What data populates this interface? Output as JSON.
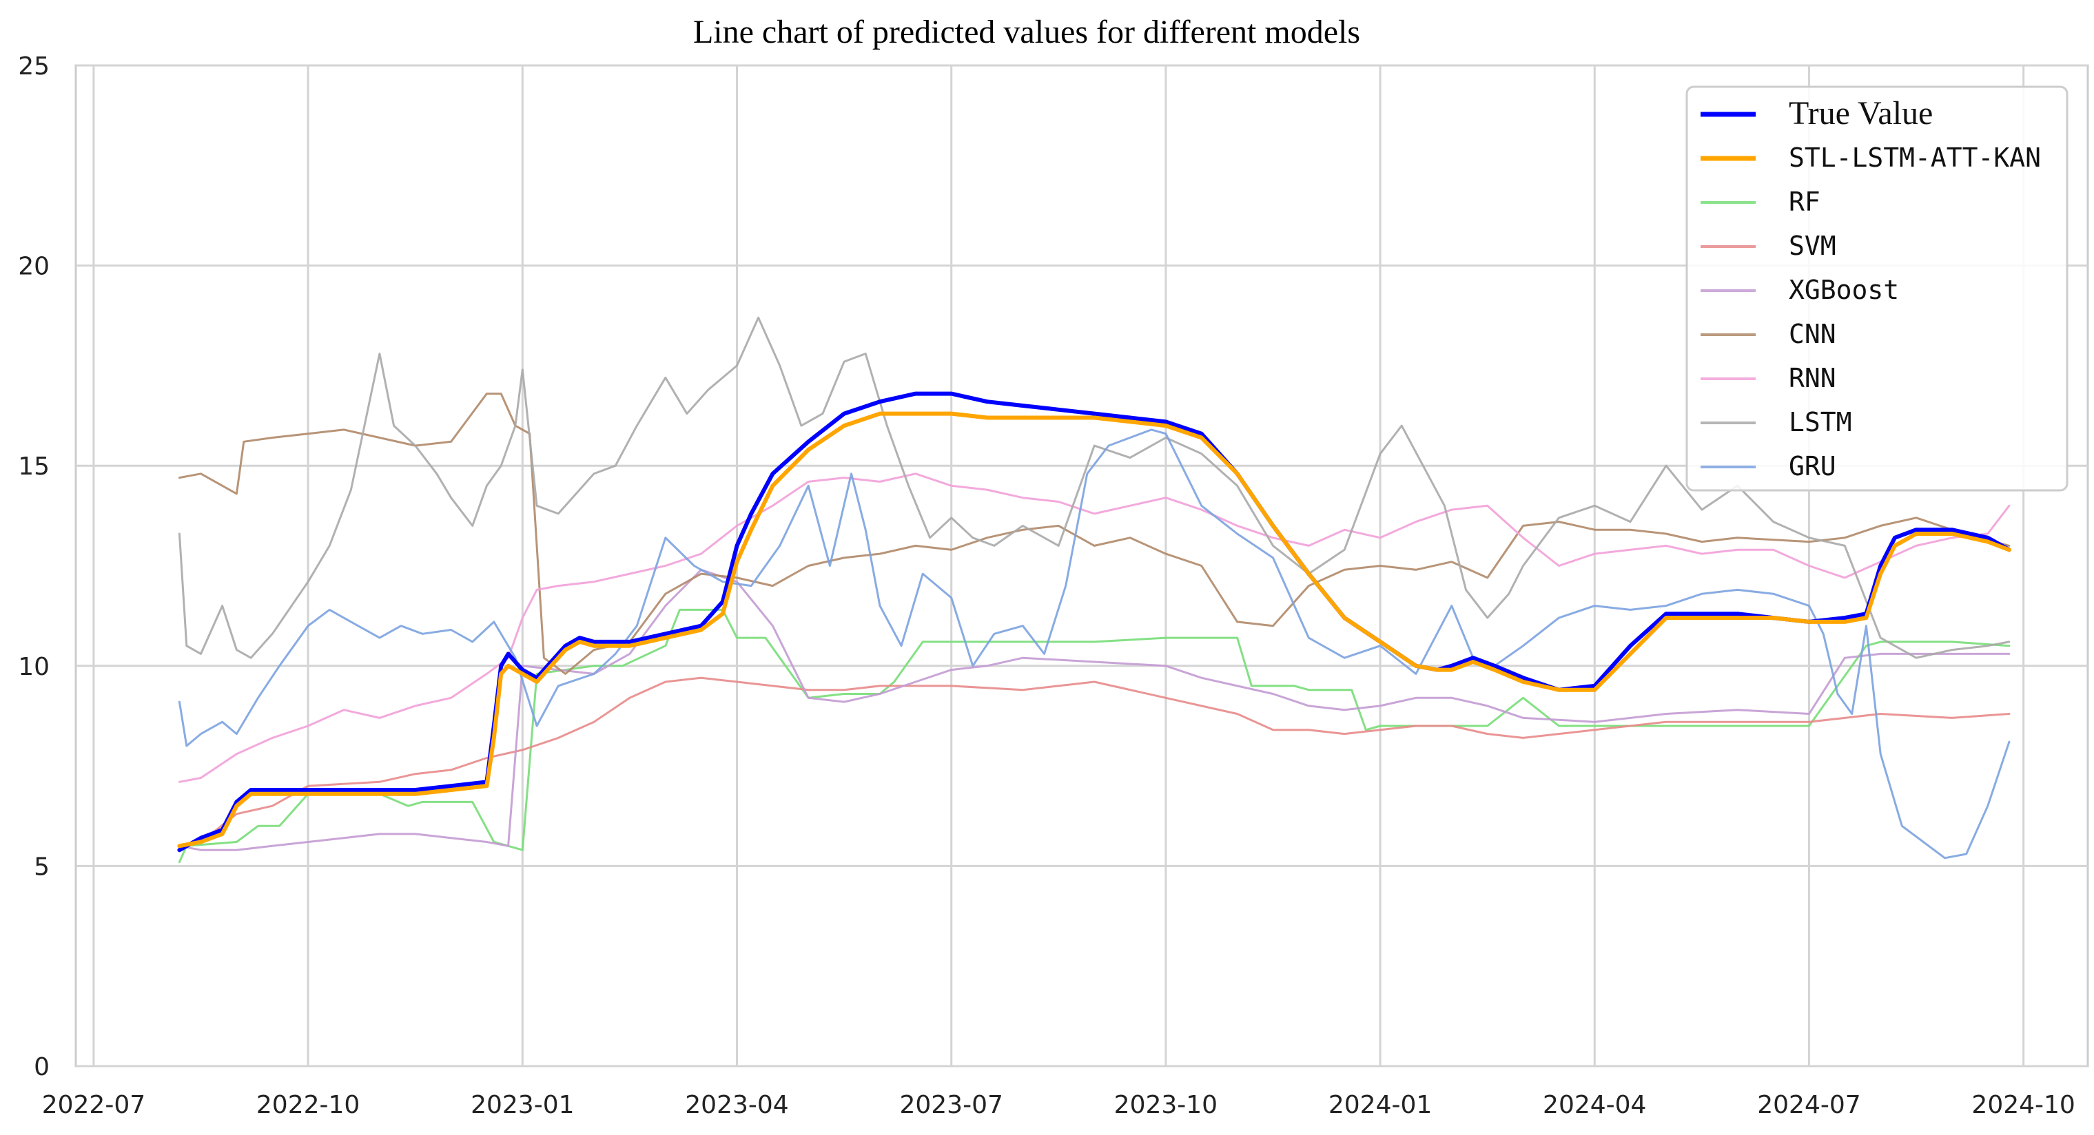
{
  "chart_data": {
    "type": "line",
    "title": "Line chart of predicted values for different models",
    "xlabel": "",
    "ylabel": "",
    "ylim": [
      0,
      25
    ],
    "xlim": [
      0,
      27
    ],
    "grid": true,
    "legend_position": "top-right",
    "y_ticks": [
      {
        "value": 0,
        "label": "0"
      },
      {
        "value": 5,
        "label": "5"
      },
      {
        "value": 10,
        "label": "10"
      },
      {
        "value": 15,
        "label": "15"
      },
      {
        "value": 20,
        "label": "20"
      },
      {
        "value": 25,
        "label": "25"
      }
    ],
    "x_ticks": [
      {
        "value": 0,
        "label": "2022-07"
      },
      {
        "value": 3,
        "label": "2022-10"
      },
      {
        "value": 6,
        "label": "2023-01"
      },
      {
        "value": 9,
        "label": "2023-04"
      },
      {
        "value": 12,
        "label": "2023-07"
      },
      {
        "value": 15,
        "label": "2023-10"
      },
      {
        "value": 18,
        "label": "2024-01"
      },
      {
        "value": 21,
        "label": "2024-04"
      },
      {
        "value": 24,
        "label": "2024-07"
      },
      {
        "value": 27,
        "label": "2024-10"
      }
    ],
    "x_unit": "months since 2022-07-01",
    "series": [
      {
        "name": "True Value",
        "color": "#0000ff",
        "width": 6,
        "opacity": 1,
        "x": [
          1.2,
          1.5,
          1.8,
          2.0,
          2.2,
          2.5,
          3.0,
          3.5,
          4.0,
          4.5,
          5.0,
          5.5,
          5.6,
          5.7,
          5.8,
          6.0,
          6.2,
          6.4,
          6.6,
          6.8,
          7.0,
          7.2,
          7.5,
          8.0,
          8.5,
          8.8,
          9.0,
          9.2,
          9.5,
          10.0,
          10.5,
          11.0,
          11.5,
          12.0,
          12.5,
          13.0,
          13.5,
          14.0,
          14.5,
          15.0,
          15.5,
          16.0,
          16.5,
          17.0,
          17.5,
          18.0,
          18.5,
          18.8,
          19.0,
          19.3,
          19.6,
          20.0,
          20.5,
          21.0,
          21.5,
          22.0,
          22.5,
          23.0,
          23.5,
          24.0,
          24.5,
          24.8,
          25.0,
          25.2,
          25.5,
          26.0,
          26.5,
          26.8
        ],
        "y": [
          5.4,
          5.7,
          5.9,
          6.6,
          6.9,
          6.9,
          6.9,
          6.9,
          6.9,
          6.9,
          7.0,
          7.1,
          8.5,
          10.0,
          10.3,
          9.9,
          9.7,
          10.1,
          10.5,
          10.7,
          10.6,
          10.6,
          10.6,
          10.8,
          11.0,
          11.6,
          13.0,
          13.8,
          14.8,
          15.6,
          16.3,
          16.6,
          16.8,
          16.8,
          16.6,
          16.5,
          16.4,
          16.3,
          16.2,
          16.1,
          15.8,
          14.8,
          13.5,
          12.3,
          11.2,
          10.6,
          10.0,
          9.9,
          10.0,
          10.2,
          10.0,
          9.7,
          9.4,
          9.5,
          10.5,
          11.3,
          11.3,
          11.3,
          11.2,
          11.1,
          11.2,
          11.3,
          12.5,
          13.2,
          13.4,
          13.4,
          13.2,
          12.9
        ]
      },
      {
        "name": "STL-LSTM-ATT-KAN",
        "color": "#ffa500",
        "width": 6,
        "opacity": 1,
        "x": [
          1.2,
          1.5,
          1.8,
          2.0,
          2.2,
          2.5,
          3.0,
          3.5,
          4.0,
          4.5,
          5.0,
          5.5,
          5.6,
          5.7,
          5.8,
          6.0,
          6.2,
          6.4,
          6.6,
          6.8,
          7.0,
          7.2,
          7.5,
          8.0,
          8.5,
          8.8,
          9.0,
          9.2,
          9.5,
          10.0,
          10.5,
          11.0,
          11.5,
          12.0,
          12.5,
          13.0,
          13.5,
          14.0,
          14.5,
          15.0,
          15.5,
          16.0,
          16.5,
          17.0,
          17.5,
          18.0,
          18.5,
          18.8,
          19.0,
          19.3,
          19.6,
          20.0,
          20.5,
          21.0,
          21.5,
          22.0,
          22.5,
          23.0,
          23.5,
          24.0,
          24.5,
          24.8,
          25.0,
          25.2,
          25.5,
          26.0,
          26.5,
          26.8
        ],
        "y": [
          5.5,
          5.6,
          5.8,
          6.5,
          6.8,
          6.8,
          6.8,
          6.8,
          6.8,
          6.8,
          6.9,
          7.0,
          8.2,
          9.8,
          10.0,
          9.8,
          9.6,
          10.0,
          10.4,
          10.6,
          10.5,
          10.5,
          10.5,
          10.7,
          10.9,
          11.3,
          12.6,
          13.4,
          14.5,
          15.4,
          16.0,
          16.3,
          16.3,
          16.3,
          16.2,
          16.2,
          16.2,
          16.2,
          16.1,
          16.0,
          15.7,
          14.8,
          13.5,
          12.3,
          11.2,
          10.6,
          10.0,
          9.9,
          9.9,
          10.1,
          9.9,
          9.6,
          9.4,
          9.4,
          10.3,
          11.2,
          11.2,
          11.2,
          11.2,
          11.1,
          11.1,
          11.2,
          12.3,
          13.0,
          13.3,
          13.3,
          13.1,
          12.9
        ]
      },
      {
        "name": "RF",
        "color": "#77dd77",
        "width": 3,
        "opacity": 0.9,
        "x": [
          1.2,
          1.3,
          2.0,
          2.3,
          2.6,
          3.0,
          3.5,
          4.0,
          4.4,
          4.6,
          5.0,
          5.3,
          5.6,
          5.8,
          6.0,
          6.2,
          7.0,
          7.4,
          8.0,
          8.2,
          8.8,
          9.0,
          9.4,
          10.0,
          10.5,
          11.0,
          11.2,
          11.6,
          12.0,
          13.0,
          14.0,
          15.0,
          16.0,
          16.2,
          16.8,
          17.0,
          17.6,
          17.8,
          18.0,
          19.0,
          19.5,
          20.0,
          20.5,
          21.0,
          22.0,
          23.0,
          24.0,
          24.8,
          25.0,
          26.0,
          26.8
        ],
        "y": [
          5.1,
          5.5,
          5.6,
          6.0,
          6.0,
          6.8,
          6.8,
          6.8,
          6.5,
          6.6,
          6.6,
          6.6,
          5.6,
          5.5,
          5.4,
          9.8,
          10.0,
          10.0,
          10.5,
          11.4,
          11.4,
          10.7,
          10.7,
          9.2,
          9.3,
          9.3,
          9.6,
          10.6,
          10.6,
          10.6,
          10.6,
          10.7,
          10.7,
          9.5,
          9.5,
          9.4,
          9.4,
          8.4,
          8.5,
          8.5,
          8.5,
          9.2,
          8.5,
          8.5,
          8.5,
          8.5,
          8.5,
          10.5,
          10.6,
          10.6,
          10.5
        ]
      },
      {
        "name": "SVM",
        "color": "#e88a8a",
        "width": 3,
        "opacity": 0.9,
        "x": [
          1.5,
          2.0,
          2.5,
          3.0,
          4.0,
          4.5,
          5.0,
          5.5,
          6.0,
          6.5,
          7.0,
          7.5,
          8.0,
          8.5,
          9.0,
          9.5,
          10.0,
          10.5,
          11.0,
          12.0,
          13.0,
          14.0,
          15.0,
          16.0,
          16.5,
          17.0,
          17.5,
          18.0,
          18.5,
          19.0,
          19.5,
          20.0,
          21.0,
          22.0,
          23.0,
          24.0,
          24.5,
          25.0,
          26.0,
          26.8
        ],
        "y": [
          5.6,
          6.3,
          6.5,
          7.0,
          7.1,
          7.3,
          7.4,
          7.7,
          7.9,
          8.2,
          8.6,
          9.2,
          9.6,
          9.7,
          9.6,
          9.5,
          9.4,
          9.4,
          9.5,
          9.5,
          9.4,
          9.6,
          9.2,
          8.8,
          8.4,
          8.4,
          8.3,
          8.4,
          8.5,
          8.5,
          8.3,
          8.2,
          8.4,
          8.6,
          8.6,
          8.6,
          8.7,
          8.8,
          8.7,
          8.8
        ]
      },
      {
        "name": "XGBoost",
        "color": "#c39bd3",
        "width": 3,
        "opacity": 0.9,
        "x": [
          1.2,
          1.5,
          2.0,
          2.5,
          3.0,
          3.5,
          4.0,
          4.5,
          5.0,
          5.5,
          5.8,
          6.0,
          6.5,
          7.0,
          7.5,
          8.0,
          8.5,
          9.0,
          9.5,
          10.0,
          10.5,
          11.0,
          11.5,
          12.0,
          12.5,
          13.0,
          14.0,
          15.0,
          15.5,
          16.0,
          16.5,
          17.0,
          17.5,
          18.0,
          18.5,
          19.0,
          19.5,
          20.0,
          21.0,
          22.0,
          23.0,
          24.0,
          24.5,
          25.0,
          26.0,
          26.8
        ],
        "y": [
          5.5,
          5.4,
          5.4,
          5.5,
          5.6,
          5.7,
          5.8,
          5.8,
          5.7,
          5.6,
          5.5,
          10.0,
          9.9,
          9.8,
          10.3,
          11.5,
          12.4,
          12.1,
          11.0,
          9.2,
          9.1,
          9.3,
          9.6,
          9.9,
          10.0,
          10.2,
          10.1,
          10.0,
          9.7,
          9.5,
          9.3,
          9.0,
          8.9,
          9.0,
          9.2,
          9.2,
          9.0,
          8.7,
          8.6,
          8.8,
          8.9,
          8.8,
          10.2,
          10.3,
          10.3,
          10.3
        ]
      },
      {
        "name": "CNN",
        "color": "#b08868",
        "width": 3,
        "opacity": 0.9,
        "x": [
          1.2,
          1.5,
          2.0,
          2.1,
          2.5,
          3.0,
          3.5,
          4.0,
          4.5,
          5.0,
          5.5,
          5.7,
          5.9,
          6.1,
          6.3,
          6.6,
          7.0,
          7.5,
          8.0,
          8.5,
          9.0,
          9.5,
          10.0,
          10.5,
          11.0,
          11.5,
          12.0,
          12.5,
          13.0,
          13.5,
          14.0,
          14.5,
          15.0,
          15.5,
          16.0,
          16.5,
          17.0,
          17.5,
          18.0,
          18.5,
          19.0,
          19.5,
          20.0,
          20.5,
          21.0,
          21.5,
          22.0,
          22.5,
          23.0,
          24.0,
          24.5,
          25.0,
          25.5,
          26.0,
          26.8
        ],
        "y": [
          14.7,
          14.8,
          14.3,
          15.6,
          15.7,
          15.8,
          15.9,
          15.7,
          15.5,
          15.6,
          16.8,
          16.8,
          16.0,
          15.8,
          10.2,
          9.8,
          10.4,
          10.6,
          11.8,
          12.3,
          12.2,
          12.0,
          12.5,
          12.7,
          12.8,
          13.0,
          12.9,
          13.2,
          13.4,
          13.5,
          13.0,
          13.2,
          12.8,
          12.5,
          11.1,
          11.0,
          12.0,
          12.4,
          12.5,
          12.4,
          12.6,
          12.2,
          13.5,
          13.6,
          13.4,
          13.4,
          13.3,
          13.1,
          13.2,
          13.1,
          13.2,
          13.5,
          13.7,
          13.4,
          13.0
        ]
      },
      {
        "name": "RNN",
        "color": "#f2a0d8",
        "width": 3,
        "opacity": 0.9,
        "x": [
          1.2,
          1.5,
          2.0,
          2.5,
          3.0,
          3.5,
          4.0,
          4.5,
          5.0,
          5.5,
          5.8,
          6.0,
          6.2,
          6.5,
          7.0,
          7.5,
          8.0,
          8.5,
          9.0,
          9.5,
          10.0,
          10.5,
          11.0,
          11.5,
          12.0,
          12.5,
          13.0,
          13.5,
          14.0,
          14.5,
          15.0,
          15.5,
          16.0,
          16.5,
          17.0,
          17.5,
          18.0,
          18.5,
          19.0,
          19.5,
          20.0,
          20.5,
          21.0,
          21.5,
          22.0,
          22.5,
          23.0,
          23.5,
          24.0,
          24.5,
          25.0,
          25.5,
          26.0,
          26.5,
          26.8
        ],
        "y": [
          7.1,
          7.2,
          7.8,
          8.2,
          8.5,
          8.9,
          8.7,
          9.0,
          9.2,
          9.8,
          10.2,
          11.2,
          11.9,
          12.0,
          12.1,
          12.3,
          12.5,
          12.8,
          13.5,
          14.0,
          14.6,
          14.7,
          14.6,
          14.8,
          14.5,
          14.4,
          14.2,
          14.1,
          13.8,
          14.0,
          14.2,
          13.9,
          13.5,
          13.2,
          13.0,
          13.4,
          13.2,
          13.6,
          13.9,
          14.0,
          13.2,
          12.5,
          12.8,
          12.9,
          13.0,
          12.8,
          12.9,
          12.9,
          12.5,
          12.2,
          12.6,
          13.0,
          13.2,
          13.3,
          14.0
        ]
      },
      {
        "name": "LSTM",
        "color": "#a8a8a8",
        "width": 3,
        "opacity": 0.9,
        "x": [
          1.2,
          1.3,
          1.5,
          1.8,
          2.0,
          2.2,
          2.5,
          3.0,
          3.3,
          3.6,
          4.0,
          4.2,
          4.5,
          4.8,
          5.0,
          5.3,
          5.5,
          5.7,
          5.9,
          6.0,
          6.2,
          6.5,
          7.0,
          7.3,
          7.6,
          8.0,
          8.3,
          8.6,
          9.0,
          9.3,
          9.6,
          9.9,
          10.2,
          10.5,
          10.8,
          11.1,
          11.4,
          11.7,
          12.0,
          12.3,
          12.6,
          13.0,
          13.5,
          14.0,
          14.5,
          15.0,
          15.5,
          16.0,
          16.5,
          17.0,
          17.5,
          18.0,
          18.3,
          18.6,
          18.9,
          19.2,
          19.5,
          19.8,
          20.0,
          20.5,
          21.0,
          21.5,
          22.0,
          22.5,
          23.0,
          23.5,
          24.0,
          24.5,
          25.0,
          25.5,
          26.0,
          26.5,
          26.8
        ],
        "y": [
          13.3,
          10.5,
          10.3,
          11.5,
          10.4,
          10.2,
          10.8,
          12.1,
          13.0,
          14.4,
          17.8,
          16.0,
          15.5,
          14.8,
          14.2,
          13.5,
          14.5,
          15.0,
          16.0,
          17.4,
          14.0,
          13.8,
          14.8,
          15.0,
          16.0,
          17.2,
          16.3,
          16.9,
          17.5,
          18.7,
          17.5,
          16.0,
          16.3,
          17.6,
          17.8,
          16.0,
          14.5,
          13.2,
          13.7,
          13.2,
          13.0,
          13.5,
          13.0,
          15.5,
          15.2,
          15.7,
          15.3,
          14.5,
          13.0,
          12.3,
          12.9,
          15.3,
          16.0,
          15.0,
          14.0,
          11.9,
          11.2,
          11.8,
          12.5,
          13.7,
          14.0,
          13.6,
          15.0,
          13.9,
          14.5,
          13.6,
          13.2,
          13.0,
          10.7,
          10.2,
          10.4,
          10.5,
          10.6
        ]
      },
      {
        "name": "GRU",
        "color": "#7ba2e0",
        "width": 3,
        "opacity": 0.9,
        "x": [
          1.2,
          1.3,
          1.5,
          1.8,
          2.0,
          2.3,
          2.6,
          3.0,
          3.3,
          3.6,
          4.0,
          4.3,
          4.6,
          5.0,
          5.3,
          5.6,
          5.9,
          6.2,
          6.5,
          7.0,
          7.3,
          7.6,
          8.0,
          8.4,
          8.8,
          9.2,
          9.6,
          10.0,
          10.3,
          10.6,
          10.8,
          11.0,
          11.3,
          11.6,
          12.0,
          12.3,
          12.6,
          13.0,
          13.3,
          13.6,
          13.9,
          14.2,
          14.5,
          14.8,
          15.0,
          15.5,
          16.0,
          16.5,
          17.0,
          17.5,
          18.0,
          18.5,
          19.0,
          19.3,
          19.6,
          20.0,
          20.5,
          21.0,
          21.5,
          22.0,
          22.5,
          23.0,
          23.5,
          24.0,
          24.2,
          24.4,
          24.6,
          24.8,
          25.0,
          25.3,
          25.6,
          25.9,
          26.2,
          26.5,
          26.8
        ],
        "y": [
          9.1,
          8.0,
          8.3,
          8.6,
          8.3,
          9.2,
          10.0,
          11.0,
          11.4,
          11.1,
          10.7,
          11.0,
          10.8,
          10.9,
          10.6,
          11.1,
          10.2,
          8.5,
          9.5,
          9.8,
          10.3,
          11.0,
          13.2,
          12.5,
          12.1,
          12.0,
          13.0,
          14.5,
          12.5,
          14.8,
          13.4,
          11.5,
          10.5,
          12.3,
          11.7,
          10.0,
          10.8,
          11.0,
          10.3,
          12.0,
          14.8,
          15.5,
          15.7,
          15.9,
          15.8,
          14.0,
          13.3,
          12.7,
          10.7,
          10.2,
          10.5,
          9.8,
          11.5,
          10.2,
          10.0,
          10.5,
          11.2,
          11.5,
          11.4,
          11.5,
          11.8,
          11.9,
          11.8,
          11.5,
          10.8,
          9.3,
          8.8,
          11.0,
          7.8,
          6.0,
          5.6,
          5.2,
          5.3,
          6.5,
          8.1
        ]
      }
    ]
  }
}
